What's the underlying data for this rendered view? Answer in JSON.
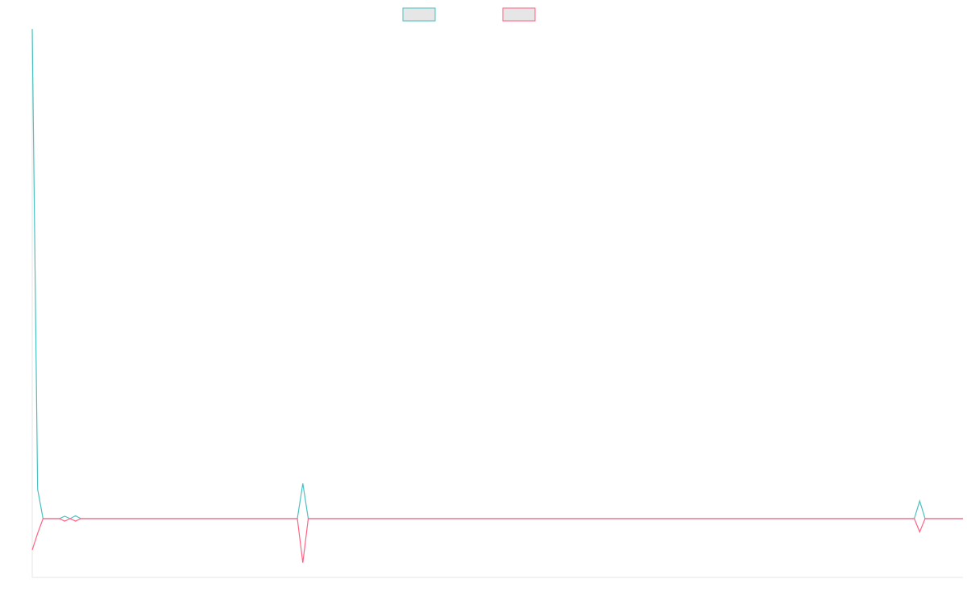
{
  "chart_data": {
    "type": "line",
    "title": "",
    "xlabel": "",
    "ylabel": "",
    "grid": false,
    "legend_position": "top-center",
    "x_count": 173,
    "ylim": [
      -0.12,
      1.0
    ],
    "series": [
      {
        "color": "#4bc0c0",
        "fill": "#e6e6e6",
        "points": [
          [
            0,
            1.0
          ],
          [
            1,
            0.06
          ],
          [
            2,
            0.0
          ],
          [
            3,
            0.0
          ],
          [
            4,
            0.0
          ],
          [
            5,
            0.0
          ],
          [
            6,
            0.005
          ],
          [
            7,
            0.0
          ],
          [
            8,
            0.006
          ],
          [
            9,
            0.0
          ],
          [
            49,
            0.0
          ],
          [
            50,
            0.072
          ],
          [
            51,
            0.0
          ],
          [
            163,
            0.0
          ],
          [
            164,
            0.036
          ],
          [
            165,
            0.0
          ],
          [
            172,
            0.0
          ]
        ]
      },
      {
        "color": "#ff6384",
        "fill": "#e6e6e6",
        "points": [
          [
            0,
            -0.064
          ],
          [
            1,
            -0.03
          ],
          [
            2,
            0.0
          ],
          [
            3,
            0.0
          ],
          [
            4,
            0.0
          ],
          [
            5,
            0.0
          ],
          [
            6,
            -0.005
          ],
          [
            7,
            0.0
          ],
          [
            8,
            -0.005
          ],
          [
            9,
            0.0
          ],
          [
            49,
            0.0
          ],
          [
            50,
            -0.09
          ],
          [
            51,
            0.0
          ],
          [
            163,
            0.0
          ],
          [
            164,
            -0.027
          ],
          [
            165,
            0.0
          ],
          [
            172,
            0.0
          ]
        ]
      }
    ]
  }
}
